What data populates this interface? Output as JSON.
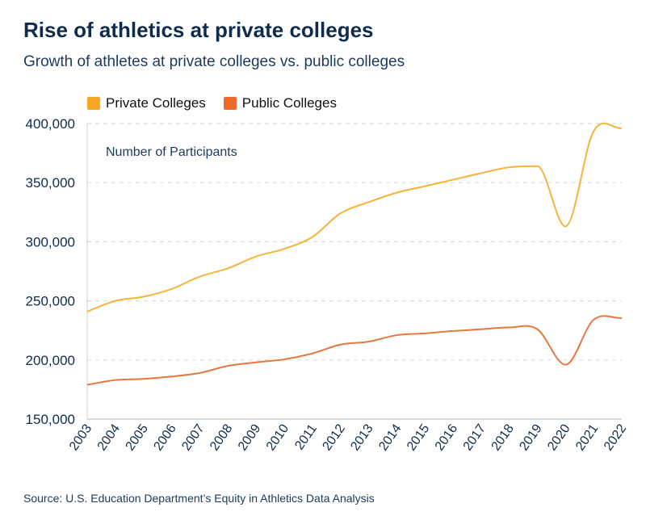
{
  "header": {
    "title": "Rise of athletics at private colleges",
    "subtitle": "Growth of athletes at private colleges vs. public colleges"
  },
  "source": "Source: U.S. Education Department’s  Equity in Athletics Data Analysis",
  "chart_data": {
    "type": "line",
    "title": "Rise of athletics at private colleges",
    "subtitle": "Growth of athletes at private colleges vs. public colleges",
    "ylabel": "Number of Participants",
    "xlabel": "",
    "x": [
      "2003",
      "2004",
      "2005",
      "2006",
      "2007",
      "2008",
      "2009",
      "2010",
      "2011",
      "2012",
      "2013",
      "2014",
      "2015",
      "2016",
      "2017",
      "2018",
      "2019",
      "2020",
      "2021",
      "2022"
    ],
    "ylim": [
      150000,
      400000
    ],
    "yticks": [
      "150,000",
      "200,000",
      "250,000",
      "300,000",
      "350,000",
      "400,000"
    ],
    "ytick_values": [
      150000,
      200000,
      250000,
      300000,
      350000,
      400000
    ],
    "grid": "horizontal dashed",
    "legend": "top-left",
    "series": [
      {
        "name": "Private Colleges",
        "color": "#F5B43A",
        "legend_color": "#F7A823",
        "values": [
          241000,
          250000,
          253500,
          260000,
          270500,
          277500,
          287500,
          294000,
          304000,
          324000,
          333500,
          341500,
          347000,
          352500,
          358000,
          363000,
          364000,
          313000,
          393500,
          396000
        ]
      },
      {
        "name": "Public Colleges",
        "color": "#E8773F",
        "legend_color": "#EC6A2C",
        "values": [
          179000,
          183000,
          184000,
          186000,
          189000,
          195000,
          198000,
          200500,
          205500,
          213000,
          215500,
          221000,
          222500,
          224500,
          226000,
          227500,
          226000,
          196000,
          234000,
          235500
        ]
      }
    ]
  }
}
